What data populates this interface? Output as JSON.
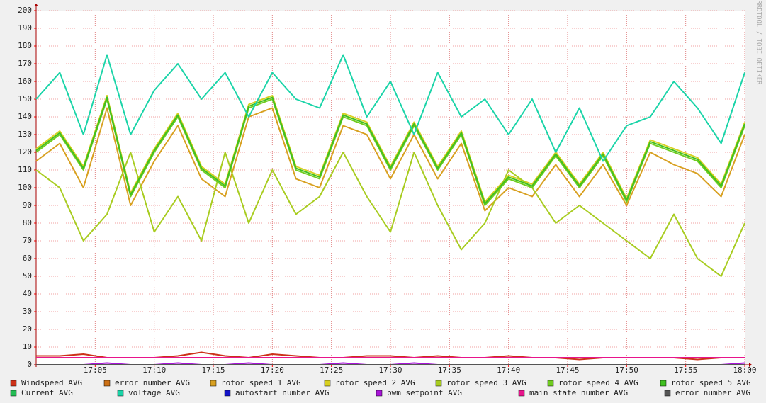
{
  "chart_data": {
    "type": "line",
    "credit": "RRDTOOL / TOBI OETIKER",
    "x": [
      0,
      2,
      4,
      6,
      8,
      10,
      12,
      14,
      16,
      18,
      20,
      22,
      24,
      26,
      28,
      30,
      32,
      34,
      36,
      38,
      40,
      42,
      44,
      46,
      48,
      50,
      52,
      54,
      56,
      58,
      60
    ],
    "xlim": [
      0,
      60
    ],
    "xticks": [
      {
        "value": 5,
        "label": "17:05"
      },
      {
        "value": 10,
        "label": "17:10"
      },
      {
        "value": 15,
        "label": "17:15"
      },
      {
        "value": 20,
        "label": "17:20"
      },
      {
        "value": 25,
        "label": "17:25"
      },
      {
        "value": 30,
        "label": "17:30"
      },
      {
        "value": 35,
        "label": "17:35"
      },
      {
        "value": 40,
        "label": "17:40"
      },
      {
        "value": 45,
        "label": "17:45"
      },
      {
        "value": 50,
        "label": "17:50"
      },
      {
        "value": 55,
        "label": "17:55"
      },
      {
        "value": 60,
        "label": "18:00"
      }
    ],
    "ylim": [
      0,
      200
    ],
    "yticks": [
      0,
      10,
      20,
      30,
      40,
      50,
      60,
      70,
      80,
      90,
      100,
      110,
      120,
      130,
      140,
      150,
      160,
      170,
      180,
      190,
      200
    ],
    "grid": true,
    "legend": "bottom",
    "series": [
      {
        "name": "Windspeed AVG",
        "color": "#cc3118",
        "values": [
          5,
          5,
          6,
          4,
          4,
          4,
          5,
          7,
          5,
          4,
          6,
          5,
          4,
          4,
          5,
          5,
          4,
          5,
          4,
          4,
          5,
          4,
          4,
          3,
          4,
          4,
          4,
          4,
          3,
          4,
          4
        ]
      },
      {
        "name": "error_number AVG",
        "color": "#cc7016",
        "values": [
          0,
          0,
          0,
          0,
          0,
          0,
          0,
          0,
          0,
          0,
          0,
          0,
          0,
          0,
          0,
          0,
          0,
          0,
          0,
          0,
          0,
          0,
          0,
          0,
          0,
          0,
          0,
          0,
          0,
          0,
          0
        ]
      },
      {
        "name": "rotor speed 1 AVG",
        "color": "#d8a020",
        "values": [
          115,
          125,
          100,
          145,
          90,
          115,
          135,
          105,
          95,
          140,
          145,
          105,
          100,
          135,
          130,
          105,
          130,
          105,
          125,
          87,
          100,
          95,
          113,
          95,
          113,
          90,
          120,
          113,
          108,
          95,
          130
        ]
      },
      {
        "name": "rotor speed 2 AVG",
        "color": "#d8d020",
        "values": [
          122,
          132,
          112,
          152,
          97,
          122,
          142,
          112,
          102,
          147,
          152,
          112,
          107,
          142,
          137,
          112,
          137,
          112,
          132,
          92,
          107,
          102,
          120,
          102,
          120,
          94,
          127,
          122,
          117,
          102,
          137
        ]
      },
      {
        "name": "rotor speed 3 AVG",
        "color": "#a8cc20",
        "values": [
          110,
          100,
          70,
          85,
          120,
          75,
          95,
          70,
          120,
          80,
          110,
          85,
          95,
          120,
          95,
          75,
          120,
          90,
          65,
          80,
          110,
          100,
          80,
          90,
          80,
          70,
          60,
          85,
          60,
          50,
          80
        ]
      },
      {
        "name": "rotor speed 4 AVG",
        "color": "#70cc20",
        "values": [
          120,
          130,
          110,
          150,
          95,
          120,
          140,
          110,
          100,
          145,
          150,
          110,
          105,
          140,
          135,
          110,
          135,
          110,
          130,
          90,
          105,
          100,
          118,
          100,
          118,
          92,
          125,
          120,
          115,
          100,
          135
        ]
      },
      {
        "name": "rotor speed 5 AVG",
        "color": "#40c020",
        "values": [
          121,
          131,
          111,
          151,
          96,
          121,
          141,
          111,
          101,
          146,
          151,
          111,
          106,
          141,
          136,
          111,
          136,
          111,
          131,
          91,
          106,
          101,
          119,
          101,
          119,
          93,
          126,
          121,
          116,
          101,
          136
        ]
      },
      {
        "name": "Current AVG",
        "color": "#24bc54",
        "values": [
          0,
          0,
          0,
          0,
          0,
          0,
          0,
          0,
          0,
          0,
          0,
          0,
          0,
          0,
          0,
          0,
          0,
          0,
          0,
          0,
          0,
          0,
          0,
          0,
          0,
          0,
          0,
          0,
          0,
          0,
          0
        ]
      },
      {
        "name": "voltage AVG",
        "color": "#1ad4a8",
        "values": [
          150,
          165,
          130,
          175,
          130,
          155,
          170,
          150,
          165,
          140,
          165,
          150,
          145,
          175,
          140,
          160,
          130,
          165,
          140,
          150,
          130,
          150,
          120,
          145,
          115,
          135,
          140,
          160,
          145,
          125,
          165
        ]
      },
      {
        "name": "autostart_number AVG",
        "color": "#1414c8",
        "values": [
          0,
          0,
          0,
          0,
          0,
          0,
          0,
          0,
          0,
          0,
          0,
          0,
          0,
          0,
          0,
          0,
          0,
          0,
          0,
          0,
          0,
          0,
          0,
          0,
          0,
          0,
          0,
          0,
          0,
          0,
          0
        ]
      },
      {
        "name": "pwm_setpoint AVG",
        "color": "#a814d8",
        "values": [
          0,
          0,
          0,
          1,
          0,
          0,
          1,
          0,
          0,
          1,
          0,
          0,
          0,
          1,
          0,
          0,
          1,
          0,
          0,
          0,
          0,
          0,
          0,
          0,
          0,
          0,
          0,
          0,
          0,
          0,
          1
        ]
      },
      {
        "name": "main_state_number AVG",
        "color": "#e8148c",
        "values": [
          4,
          4,
          4,
          4,
          4,
          4,
          4,
          4,
          4,
          4,
          4,
          4,
          4,
          4,
          4,
          4,
          4,
          4,
          4,
          4,
          4,
          4,
          4,
          4,
          4,
          4,
          4,
          4,
          4,
          4,
          4
        ]
      },
      {
        "name": "error_number AVG",
        "color": "#555555",
        "values": [
          0,
          0,
          0,
          0,
          0,
          0,
          0,
          0,
          0,
          0,
          0,
          0,
          0,
          0,
          0,
          0,
          0,
          0,
          0,
          0,
          0,
          0,
          0,
          0,
          0,
          0,
          0,
          0,
          0,
          0,
          0
        ]
      }
    ]
  }
}
